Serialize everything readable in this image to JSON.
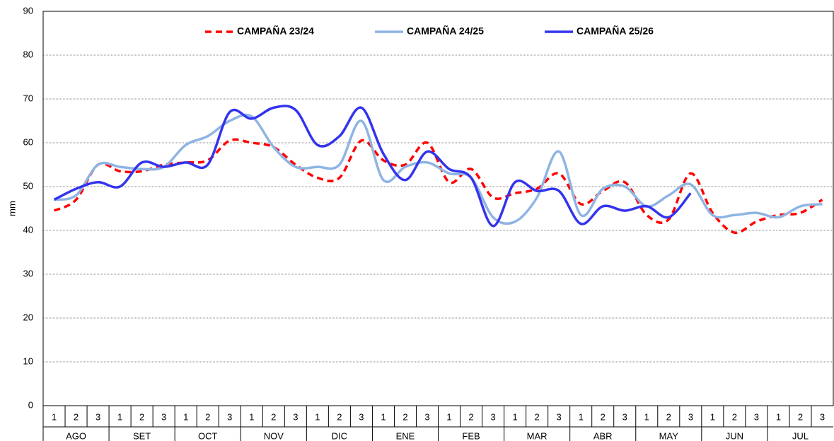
{
  "chart_data": {
    "type": "line",
    "y_label": "mm",
    "categories": [
      "1",
      "2",
      "3",
      "1",
      "2",
      "3",
      "1",
      "2",
      "3",
      "1",
      "2",
      "3",
      "1",
      "2",
      "3",
      "1",
      "2",
      "3",
      "1",
      "2",
      "3",
      "1",
      "2",
      "3",
      "1",
      "2",
      "3",
      "1",
      "2",
      "3",
      "1",
      "2",
      "3",
      "1",
      "2",
      "3"
    ],
    "months": [
      "AGO",
      "SET",
      "OCT",
      "NOV",
      "DIC",
      "ENE",
      "FEB",
      "MAR",
      "ABR",
      "MAY",
      "JUN",
      "JUL"
    ],
    "series": [
      {
        "name": "CAMPAÑA 23/24",
        "color": "#ff0000",
        "dashed": true,
        "values": [
          44.5,
          47,
          55,
          53.5,
          53.5,
          55,
          55.5,
          56,
          60.5,
          60,
          59,
          55,
          52,
          52,
          60.5,
          56,
          55,
          60,
          51,
          54,
          47.5,
          48.5,
          49.5,
          53,
          46,
          49,
          51,
          43.5,
          42.5,
          53,
          44,
          39.5,
          42,
          43.5,
          44,
          47
        ]
      },
      {
        "name": "CAMPAÑA 24/25",
        "color": "#8eb4e3",
        "dashed": false,
        "values": [
          47,
          48,
          55,
          54.5,
          54,
          54.5,
          59.5,
          61.5,
          65,
          66,
          59,
          54.5,
          54.5,
          55,
          65,
          51.5,
          54.5,
          55.5,
          53,
          52,
          43,
          42,
          47.5,
          58,
          43.5,
          49.5,
          50,
          45.5,
          48,
          50.5,
          43.5,
          43.5,
          44,
          43,
          45.5,
          46
        ]
      },
      {
        "name": "CAMPAÑA 25/26",
        "color": "#3333ee",
        "dashed": false,
        "values": [
          47,
          49.5,
          51,
          50,
          55.5,
          54.5,
          55.5,
          55,
          67,
          65.5,
          68,
          67.5,
          59.5,
          61.5,
          68,
          57.5,
          51.5,
          58,
          54,
          52,
          41,
          51,
          49,
          49,
          41.5,
          45.5,
          44.5,
          45.5,
          43,
          48.5,
          null,
          null,
          null,
          null,
          null,
          null
        ]
      }
    ],
    "ylim": [
      0,
      90
    ],
    "yticks": [
      0,
      10,
      20,
      30,
      40,
      50,
      60,
      70,
      80,
      90
    ],
    "grid": true,
    "legend": "top"
  }
}
